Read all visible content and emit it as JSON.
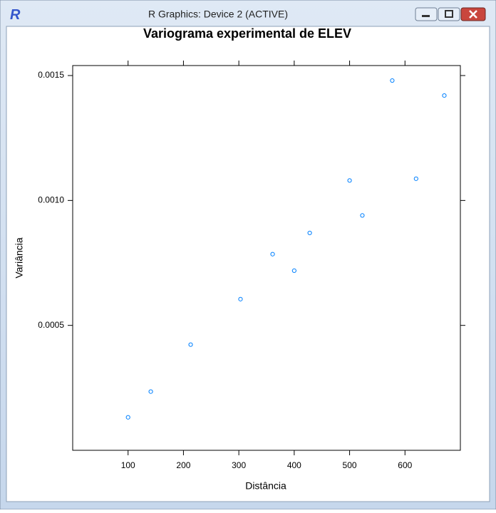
{
  "window": {
    "icon": "R",
    "title": "R Graphics: Device 2 (ACTIVE)"
  },
  "chart_data": {
    "type": "scatter",
    "title": "Variograma experimental de ELEV",
    "x_label": "Distância",
    "y_label": "Variância",
    "x": [
      100,
      141,
      213,
      303,
      361,
      400,
      428,
      500,
      523,
      577,
      620,
      671
    ],
    "values": [
      0.000132,
      0.000235,
      0.000423,
      0.000605,
      0.000785,
      0.000719,
      0.00087,
      0.00108,
      0.00094,
      0.00148,
      0.001087,
      0.00142
    ],
    "color": "#0080ff",
    "xlim": [
      0,
      700
    ],
    "xticks": [
      100,
      200,
      300,
      400,
      500,
      600
    ],
    "ylim": [
      0,
      0.00154
    ],
    "yticks": [
      0.0005,
      {
        "value": 0.001,
        "label": "0.0010"
      },
      0.0015
    ],
    "grid": false
  }
}
